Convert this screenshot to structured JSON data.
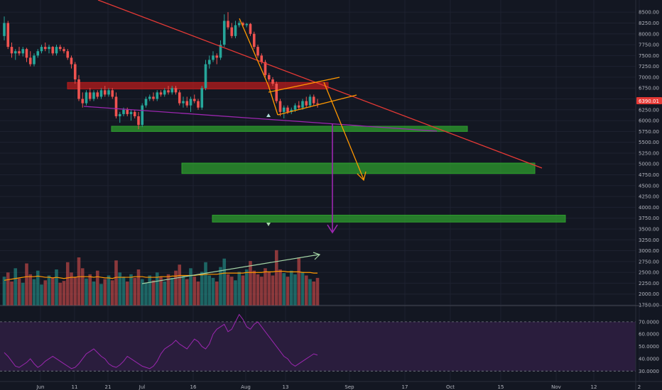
{
  "chart_data": {
    "type": "candlestick",
    "price_axis": {
      "ticks": [
        8500,
        8250,
        8000,
        7750,
        7500,
        7250,
        7000,
        6750,
        6500,
        6250,
        6000,
        5750,
        5500,
        5250,
        5000,
        4750,
        4500,
        4250,
        4000,
        3750,
        3500,
        3250,
        3000,
        2750,
        2500,
        2250,
        2000,
        1750
      ],
      "ylim": [
        1750,
        8650
      ]
    },
    "last_price": {
      "value": 6390.01,
      "label": "6390.01"
    },
    "date_axis": {
      "labels": [
        "Jun",
        "11",
        "21",
        "Jul",
        "16",
        "Aug",
        "13",
        "Sep",
        "17",
        "Oct",
        "15",
        "Nov",
        "12",
        "2"
      ]
    },
    "candles": [
      {
        "o": 7950,
        "h": 8400,
        "l": 7850,
        "c": 8250
      },
      {
        "o": 8250,
        "h": 8300,
        "l": 7650,
        "c": 7700
      },
      {
        "o": 7700,
        "h": 7800,
        "l": 7450,
        "c": 7550
      },
      {
        "o": 7550,
        "h": 7650,
        "l": 7400,
        "c": 7600
      },
      {
        "o": 7600,
        "h": 7700,
        "l": 7500,
        "c": 7550
      },
      {
        "o": 7550,
        "h": 7700,
        "l": 7480,
        "c": 7650
      },
      {
        "o": 7650,
        "h": 7680,
        "l": 7350,
        "c": 7450
      },
      {
        "o": 7450,
        "h": 7600,
        "l": 7250,
        "c": 7300
      },
      {
        "o": 7300,
        "h": 7550,
        "l": 7250,
        "c": 7500
      },
      {
        "o": 7500,
        "h": 7650,
        "l": 7450,
        "c": 7600
      },
      {
        "o": 7600,
        "h": 7750,
        "l": 7550,
        "c": 7700
      },
      {
        "o": 7700,
        "h": 7800,
        "l": 7600,
        "c": 7650
      },
      {
        "o": 7650,
        "h": 7750,
        "l": 7550,
        "c": 7700
      },
      {
        "o": 7700,
        "h": 7720,
        "l": 7500,
        "c": 7550
      },
      {
        "o": 7550,
        "h": 7750,
        "l": 7500,
        "c": 7700
      },
      {
        "o": 7700,
        "h": 7750,
        "l": 7600,
        "c": 7650
      },
      {
        "o": 7650,
        "h": 7700,
        "l": 7550,
        "c": 7600
      },
      {
        "o": 7600,
        "h": 7650,
        "l": 7400,
        "c": 7450
      },
      {
        "o": 7450,
        "h": 7500,
        "l": 7200,
        "c": 7300
      },
      {
        "o": 7300,
        "h": 7350,
        "l": 6850,
        "c": 6950
      },
      {
        "o": 6950,
        "h": 7050,
        "l": 6450,
        "c": 6500
      },
      {
        "o": 6500,
        "h": 6650,
        "l": 6300,
        "c": 6400
      },
      {
        "o": 6400,
        "h": 6700,
        "l": 6350,
        "c": 6650
      },
      {
        "o": 6650,
        "h": 6750,
        "l": 6450,
        "c": 6500
      },
      {
        "o": 6500,
        "h": 6700,
        "l": 6450,
        "c": 6650
      },
      {
        "o": 6650,
        "h": 6700,
        "l": 6500,
        "c": 6550
      },
      {
        "o": 6550,
        "h": 6750,
        "l": 6500,
        "c": 6700
      },
      {
        "o": 6700,
        "h": 6800,
        "l": 6550,
        "c": 6600
      },
      {
        "o": 6600,
        "h": 6750,
        "l": 6550,
        "c": 6700
      },
      {
        "o": 6700,
        "h": 6750,
        "l": 6500,
        "c": 6550
      },
      {
        "o": 6550,
        "h": 6650,
        "l": 6050,
        "c": 6100
      },
      {
        "o": 6100,
        "h": 6200,
        "l": 5950,
        "c": 6150
      },
      {
        "o": 6150,
        "h": 6300,
        "l": 6100,
        "c": 6250
      },
      {
        "o": 6250,
        "h": 6300,
        "l": 6100,
        "c": 6150
      },
      {
        "o": 6150,
        "h": 6250,
        "l": 6000,
        "c": 6200
      },
      {
        "o": 6200,
        "h": 6250,
        "l": 6050,
        "c": 6100
      },
      {
        "o": 6100,
        "h": 6200,
        "l": 5800,
        "c": 5900
      },
      {
        "o": 5900,
        "h": 6400,
        "l": 5850,
        "c": 6350
      },
      {
        "o": 6350,
        "h": 6550,
        "l": 6300,
        "c": 6500
      },
      {
        "o": 6500,
        "h": 6600,
        "l": 6450,
        "c": 6550
      },
      {
        "o": 6550,
        "h": 6650,
        "l": 6450,
        "c": 6500
      },
      {
        "o": 6500,
        "h": 6700,
        "l": 6450,
        "c": 6650
      },
      {
        "o": 6650,
        "h": 6700,
        "l": 6550,
        "c": 6600
      },
      {
        "o": 6600,
        "h": 6750,
        "l": 6550,
        "c": 6700
      },
      {
        "o": 6700,
        "h": 6800,
        "l": 6600,
        "c": 6650
      },
      {
        "o": 6650,
        "h": 6800,
        "l": 6600,
        "c": 6750
      },
      {
        "o": 6750,
        "h": 6800,
        "l": 6600,
        "c": 6650
      },
      {
        "o": 6650,
        "h": 6700,
        "l": 6350,
        "c": 6400
      },
      {
        "o": 6400,
        "h": 6550,
        "l": 6300,
        "c": 6450
      },
      {
        "o": 6450,
        "h": 6550,
        "l": 6300,
        "c": 6350
      },
      {
        "o": 6350,
        "h": 6550,
        "l": 6200,
        "c": 6500
      },
      {
        "o": 6500,
        "h": 6600,
        "l": 6400,
        "c": 6450
      },
      {
        "o": 6450,
        "h": 6500,
        "l": 6250,
        "c": 6300
      },
      {
        "o": 6300,
        "h": 6800,
        "l": 6250,
        "c": 6750
      },
      {
        "o": 6750,
        "h": 7400,
        "l": 6700,
        "c": 7300
      },
      {
        "o": 7300,
        "h": 7500,
        "l": 7200,
        "c": 7400
      },
      {
        "o": 7400,
        "h": 7600,
        "l": 7350,
        "c": 7500
      },
      {
        "o": 7500,
        "h": 7550,
        "l": 7300,
        "c": 7450
      },
      {
        "o": 7450,
        "h": 7850,
        "l": 7400,
        "c": 7750
      },
      {
        "o": 7750,
        "h": 8450,
        "l": 7700,
        "c": 8300
      },
      {
        "o": 8300,
        "h": 8500,
        "l": 8100,
        "c": 8150
      },
      {
        "o": 8150,
        "h": 8250,
        "l": 7900,
        "c": 7950
      },
      {
        "o": 7950,
        "h": 8300,
        "l": 7900,
        "c": 8200
      },
      {
        "o": 8200,
        "h": 8300,
        "l": 8150,
        "c": 8250
      },
      {
        "o": 8250,
        "h": 8280,
        "l": 8150,
        "c": 8200
      },
      {
        "o": 8200,
        "h": 8250,
        "l": 8150,
        "c": 8230
      },
      {
        "o": 8230,
        "h": 8250,
        "l": 7950,
        "c": 8000
      },
      {
        "o": 8000,
        "h": 8050,
        "l": 7650,
        "c": 7700
      },
      {
        "o": 7700,
        "h": 7750,
        "l": 7450,
        "c": 7500
      },
      {
        "o": 7500,
        "h": 7550,
        "l": 7300,
        "c": 7350
      },
      {
        "o": 7350,
        "h": 7400,
        "l": 7000,
        "c": 7050
      },
      {
        "o": 7050,
        "h": 7100,
        "l": 6900,
        "c": 6950
      },
      {
        "o": 6950,
        "h": 7000,
        "l": 6800,
        "c": 6850
      },
      {
        "o": 6850,
        "h": 6900,
        "l": 6400,
        "c": 6450
      },
      {
        "o": 6450,
        "h": 6500,
        "l": 6100,
        "c": 6200
      },
      {
        "o": 6200,
        "h": 6350,
        "l": 6050,
        "c": 6300
      },
      {
        "o": 6300,
        "h": 6350,
        "l": 6150,
        "c": 6200
      },
      {
        "o": 6200,
        "h": 6300,
        "l": 6150,
        "c": 6250
      },
      {
        "o": 6250,
        "h": 6400,
        "l": 6200,
        "c": 6350
      },
      {
        "o": 6350,
        "h": 6450,
        "l": 6250,
        "c": 6300
      },
      {
        "o": 6300,
        "h": 6500,
        "l": 6250,
        "c": 6450
      },
      {
        "o": 6450,
        "h": 6550,
        "l": 6300,
        "c": 6350
      },
      {
        "o": 6350,
        "h": 6600,
        "l": 6300,
        "c": 6550
      },
      {
        "o": 6550,
        "h": 6600,
        "l": 6350,
        "c": 6400
      },
      {
        "o": 6400,
        "h": 6500,
        "l": 6300,
        "c": 6390
      }
    ],
    "volume": [
      48,
      55,
      40,
      62,
      45,
      38,
      70,
      52,
      44,
      58,
      35,
      42,
      50,
      46,
      60,
      38,
      41,
      72,
      55,
      48,
      80,
      62,
      45,
      52,
      40,
      58,
      36,
      44,
      50,
      42,
      75,
      55,
      48,
      40,
      52,
      46,
      60,
      44,
      38,
      50,
      42,
      55,
      48,
      40,
      52,
      46,
      58,
      68,
      50,
      44,
      62,
      48,
      40,
      56,
      72,
      50,
      46,
      40,
      64,
      78,
      52,
      48,
      42,
      56,
      50,
      60,
      74,
      58,
      52,
      48,
      62,
      56,
      50,
      92,
      60,
      54,
      48,
      58,
      52,
      80,
      56,
      50,
      44,
      40,
      46
    ],
    "volume_ma": [
      42,
      43,
      44,
      45,
      46,
      47,
      48,
      48,
      48,
      49,
      48,
      47,
      47,
      46,
      47,
      46,
      45,
      46,
      47,
      47,
      48,
      48,
      48,
      48,
      47,
      48,
      47,
      46,
      46,
      45,
      47,
      47,
      47,
      47,
      47,
      48,
      48,
      48,
      47,
      47,
      47,
      47,
      48,
      48,
      48,
      49,
      49,
      50,
      50,
      50,
      50,
      50,
      51,
      51,
      52,
      52,
      52,
      52,
      53,
      54,
      54,
      54,
      54,
      54,
      54,
      55,
      55,
      55,
      55,
      55,
      56,
      56,
      56,
      57,
      57,
      57,
      56,
      56,
      56,
      56,
      55,
      55,
      55,
      54,
      54
    ],
    "rsi": {
      "ticks": [
        70,
        60,
        50,
        40,
        30
      ],
      "labels": [
        "70.0000",
        "60.0000",
        "50.0000",
        "40.0000",
        "30.0000"
      ],
      "ylim": [
        25,
        78
      ],
      "values": [
        45,
        42,
        38,
        34,
        33,
        35,
        37,
        40,
        36,
        33,
        35,
        38,
        40,
        42,
        40,
        38,
        36,
        34,
        32,
        33,
        36,
        40,
        44,
        46,
        48,
        45,
        42,
        40,
        36,
        34,
        33,
        35,
        38,
        42,
        40,
        38,
        36,
        34,
        33,
        32,
        34,
        38,
        44,
        48,
        50,
        52,
        55,
        52,
        50,
        48,
        52,
        56,
        54,
        50,
        48,
        52,
        60,
        64,
        66,
        68,
        62,
        64,
        70,
        76,
        72,
        66,
        64,
        68,
        70,
        66,
        62,
        58,
        54,
        50,
        46,
        42,
        40,
        36,
        34,
        36,
        38,
        40,
        42,
        44,
        43
      ]
    },
    "annotations": {
      "horizontal_zones": [
        {
          "color": "#b71c1c",
          "price_low": 6730,
          "price_high": 6880,
          "x_start": 0.1,
          "x_end": 0.48
        },
        {
          "color": "#2e9e2e",
          "price_low": 5750,
          "price_high": 5870,
          "x_start": 0.16,
          "x_end": 0.73
        },
        {
          "color": "#2e9e2e",
          "price_low": 4780,
          "price_high": 5020,
          "x_start": 0.27,
          "x_end": 0.83
        },
        {
          "color": "#2e9e2e",
          "price_low": 3660,
          "price_high": 3820,
          "x_start": 0.32,
          "x_end": 0.88
        }
      ]
    },
    "colors": {
      "bull": "#26a69a",
      "bear": "#ef5350",
      "trendline": "#e53935",
      "flag": "#ff9800",
      "target_arrow": "#9c27b0",
      "volume_ma": "#ff9800",
      "rsi_line": "#9c27b0",
      "rsi_band": "#2a1d3d",
      "volume_trend": "#a5d6a7"
    }
  }
}
